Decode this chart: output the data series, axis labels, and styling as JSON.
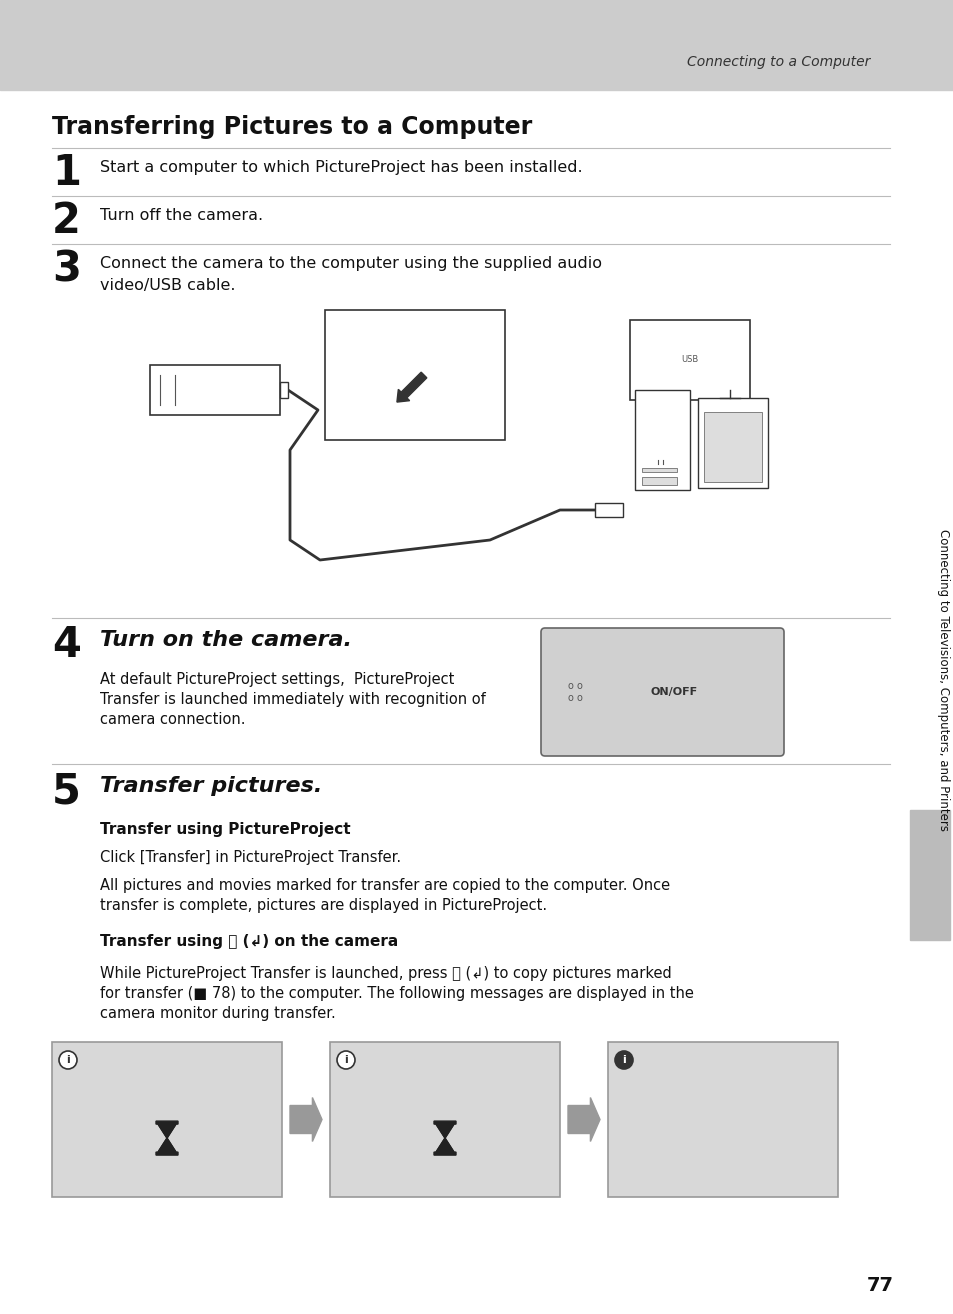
{
  "bg_color": "#ffffff",
  "header_bg": "#cccccc",
  "header_text": "Connecting to a Computer",
  "title": "Transferring Pictures to a Computer",
  "step1_num": "1",
  "step1_text": "Start a computer to which PictureProject has been installed.",
  "step2_num": "2",
  "step2_text": "Turn off the camera.",
  "step3_num": "3",
  "step3_text_line1": "Connect the camera to the computer using the supplied audio",
  "step3_text_line2": "video/USB cable.",
  "step4_num": "4",
  "step4_title": "Turn on the camera.",
  "step4_body_line1": "At default PictureProject settings,  PictureProject",
  "step4_body_line2": "Transfer is launched immediately with recognition of",
  "step4_body_line3": "camera connection.",
  "step5_num": "5",
  "step5_title": "Transfer pictures.",
  "sub_title1": "Transfer using PictureProject",
  "sub_body1": "Click [Transfer] in PictureProject Transfer.",
  "sub_body2_line1": "All pictures and movies marked for transfer are copied to the computer. Once",
  "sub_body2_line2": "transfer is complete, pictures are displayed in PictureProject.",
  "sub_title2": "Transfer using Ⓢ (↲) on the camera",
  "sub_body3_line1": "While PictureProject Transfer is launched, press Ⓢ (↲) to copy pictures marked",
  "sub_body3_line2": "for transfer (■ 78) to the computer. The following messages are displayed in the",
  "sub_body3_line3": "camera monitor during transfer.",
  "sidebar_text": "Connecting to Televisions, Computers, and Printers",
  "page_num": "77",
  "screen_bg": "#d8d8d8",
  "screen_border": "#999999",
  "arrow_color": "#999999",
  "line_color": "#bbbbbb",
  "sidebar_gray": "#bbbbbb"
}
